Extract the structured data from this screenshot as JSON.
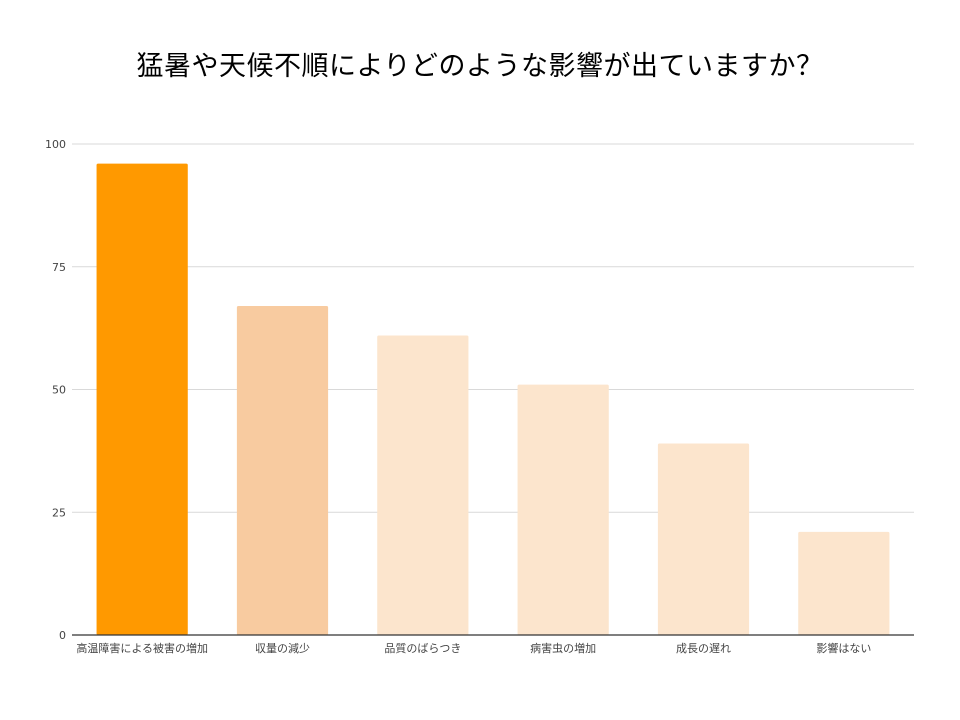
{
  "chart_data": {
    "type": "bar",
    "title": "猛暑や天候不順によりどのような影響が出ていますか？",
    "categories": [
      "高温障害による被害の増加",
      "収量の減少",
      "品質のばらつき",
      "病害虫の増加",
      "成長の遅れ",
      "影響はない"
    ],
    "values": [
      96,
      67,
      61,
      51,
      39,
      21
    ],
    "ylim": [
      0,
      100
    ],
    "yticks": [
      0,
      25,
      50,
      75,
      100
    ],
    "grid": true,
    "legend": "none",
    "bar_colors": [
      "#ff9900",
      "#f8cba0",
      "#fce5cd",
      "#fce5cd",
      "#fce5cd",
      "#fce5cd"
    ],
    "grid_color": "#d9d9d9",
    "axis_color": "#333333",
    "text_color": "#444444"
  }
}
